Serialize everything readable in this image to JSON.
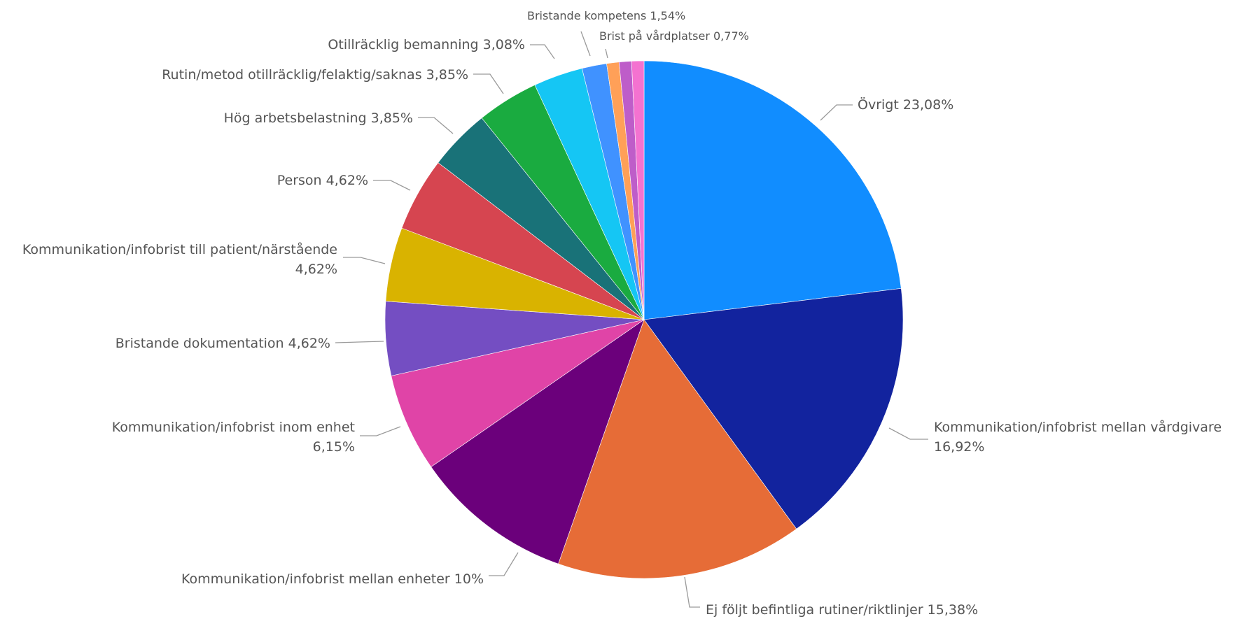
{
  "chart_data": {
    "type": "pie",
    "title": "",
    "slices": [
      {
        "label": "Övrigt",
        "value_text": "23,08%",
        "value": 23.08,
        "color": "#118DFF"
      },
      {
        "label": "Kommunikation/infobrist mellan vårdgivare",
        "value_text": "16,92%",
        "value": 16.92,
        "color": "#12239E"
      },
      {
        "label": "Ej följt befintliga rutiner/riktlinjer",
        "value_text": "15,38%",
        "value": 15.38,
        "color": "#E66C37"
      },
      {
        "label": "Kommunikation/infobrist mellan enheter",
        "value_text": "10%",
        "value": 10.0,
        "color": "#6B007B"
      },
      {
        "label": "Kommunikation/infobrist inom enhet",
        "value_text": "6,15%",
        "value": 6.15,
        "color": "#E044A7"
      },
      {
        "label": "Bristande dokumentation",
        "value_text": "4,62%",
        "value": 4.62,
        "color": "#744EC2"
      },
      {
        "label": "Kommunikation/infobrist till patient/närstående",
        "value_text": "4,62%",
        "value": 4.62,
        "color": "#D9B300"
      },
      {
        "label": "Person",
        "value_text": "4,62%",
        "value": 4.62,
        "color": "#D64550"
      },
      {
        "label": "Hög arbetsbelastning",
        "value_text": "3,85%",
        "value": 3.85,
        "color": "#197278"
      },
      {
        "label": "Rutin/metod otillräcklig/felaktig/saknas",
        "value_text": "3,85%",
        "value": 3.85,
        "color": "#1AAB40"
      },
      {
        "label": "Otillräcklig bemanning",
        "value_text": "3,08%",
        "value": 3.08,
        "color": "#15C6F4"
      },
      {
        "label": "Bristande kompetens",
        "value_text": "1,54%",
        "value": 1.54,
        "color": "#4092FF"
      },
      {
        "label": "Brist på vårdplatser",
        "value_text": "0,77%",
        "value": 0.77,
        "color": "#FFA058"
      },
      {
        "label": "",
        "value_text": "",
        "value": 0.77,
        "color": "#BE5DC9"
      },
      {
        "label": "",
        "value_text": "",
        "value": 0.77,
        "color": "#F472D0"
      }
    ]
  }
}
